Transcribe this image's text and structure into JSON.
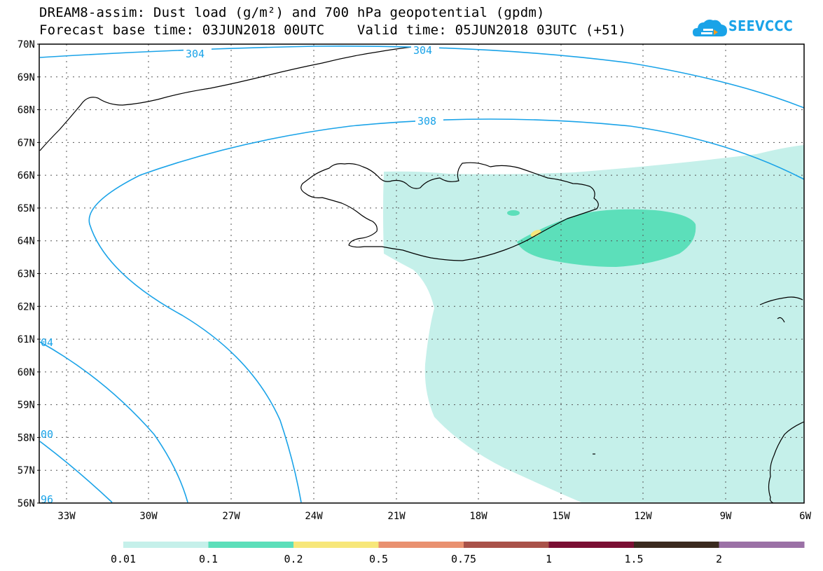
{
  "title": {
    "line1": "DREAM8-assim: Dust load (g/m²) and 700 hPa geopotential (gpdm)",
    "line2": "Forecast base time: 03JUN2018 00UTC    Valid time: 05JUN2018 03UTC (+51)"
  },
  "logo": {
    "text": "SEEVCCC",
    "color": "#1aa3e8"
  },
  "map": {
    "lat_labels": [
      "70N",
      "69N",
      "68N",
      "67N",
      "66N",
      "65N",
      "64N",
      "63N",
      "62N",
      "61N",
      "60N",
      "59N",
      "58N",
      "57N",
      "56N"
    ],
    "lon_labels": [
      "33W",
      "30W",
      "27W",
      "24W",
      "21W",
      "18W",
      "15W",
      "12W",
      "9W",
      "6W"
    ],
    "contour_labels": [
      "304",
      "304",
      "308",
      "04",
      "00",
      "96"
    ],
    "contour_color": "#1aa3e8",
    "dust_colors": {
      "low": "#c5f0ea",
      "mid": "#5cdfba",
      "high": "#f7e77a"
    }
  },
  "colorbar": {
    "labels": [
      "0.01",
      "0.1",
      "0.2",
      "0.5",
      "0.75",
      "1",
      "1.5",
      "2"
    ],
    "colors": [
      "#c5f0ea",
      "#5cdfba",
      "#f7e77a",
      "#e99170",
      "#a95249",
      "#7a0f33",
      "#3a2a1e",
      "#9b71a6"
    ]
  }
}
